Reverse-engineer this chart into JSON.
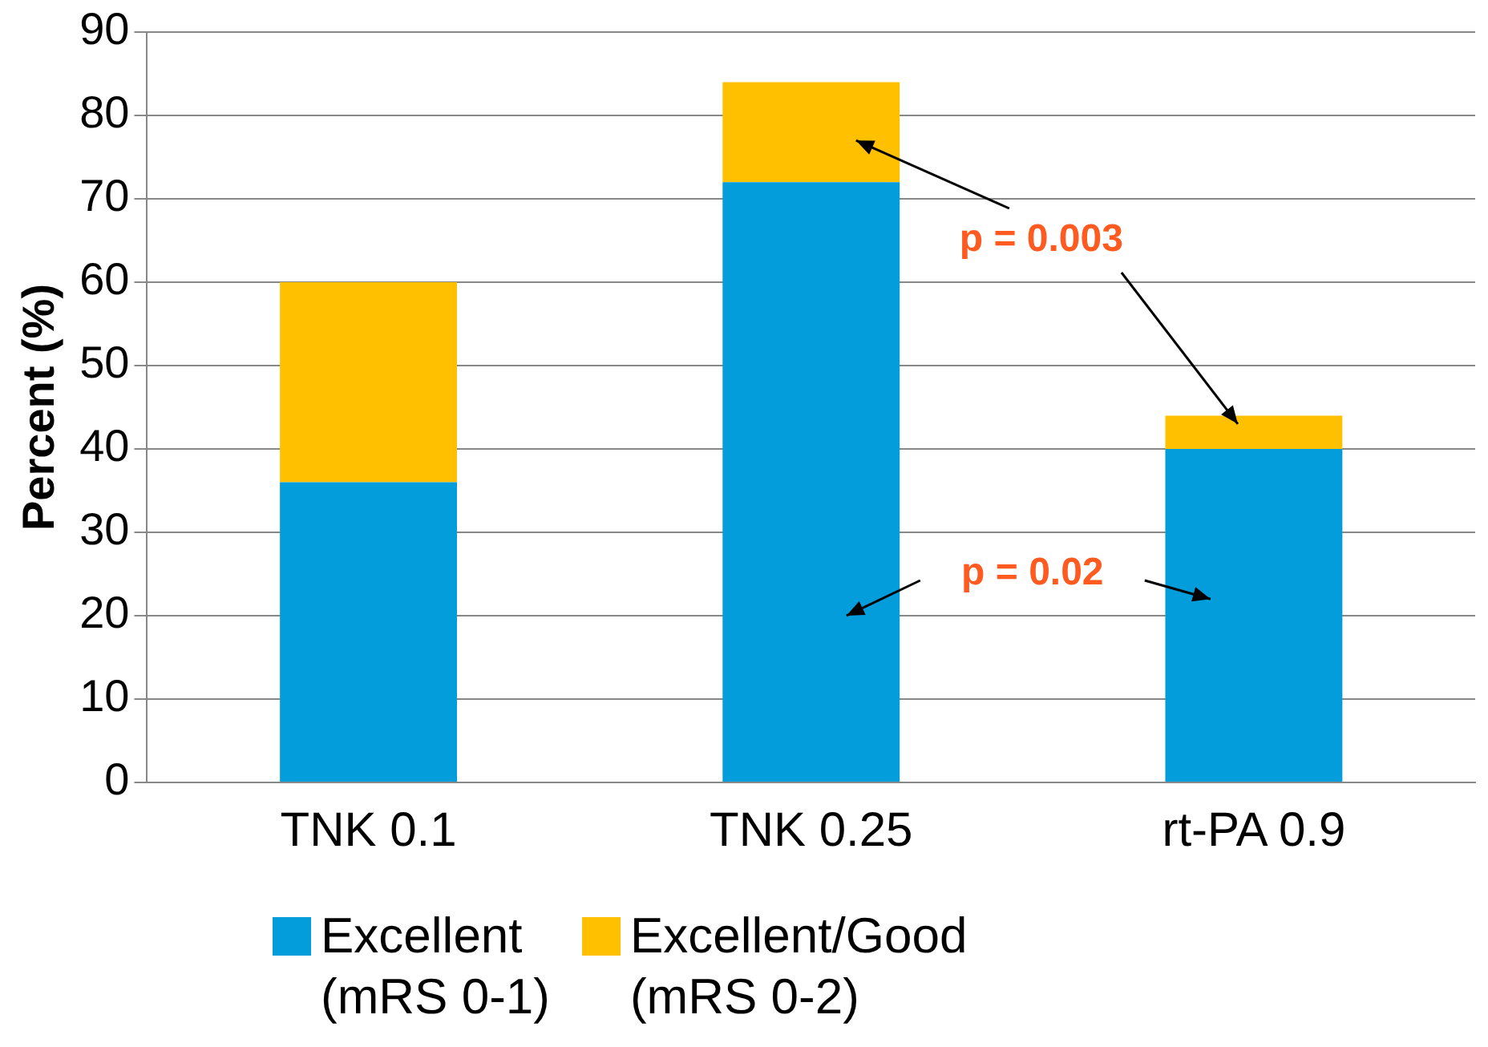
{
  "chart_data": {
    "type": "bar",
    "ylabel": "Percent (%)",
    "categories": [
      "TNK 0.1",
      "TNK 0.25",
      "rt-PA 0.9"
    ],
    "stacked": true,
    "series": [
      {
        "name": "Excellent (mRS 0-1)",
        "color": "#039ddc",
        "values": [
          36,
          72,
          40
        ]
      },
      {
        "name": "Excellent/Good (mRS 0-2)",
        "color": "#ffc000",
        "values": [
          24,
          12,
          4
        ]
      }
    ],
    "ylim": [
      0,
      90
    ],
    "yticks": [
      0,
      10,
      20,
      30,
      40,
      50,
      60,
      70,
      80,
      90
    ],
    "grid": "y",
    "legend": "bottom",
    "annotations": [
      "p = 0.003",
      "p = 0.02"
    ]
  }
}
